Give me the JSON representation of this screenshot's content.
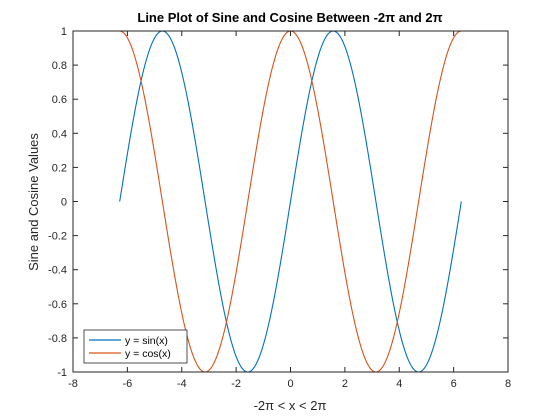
{
  "chart_data": {
    "type": "line",
    "title": "Line Plot of Sine and Cosine Between -2π and 2π",
    "xlabel": "-2π  < x < 2π",
    "ylabel": "Sine and Cosine Values",
    "xlim": [
      -8,
      8
    ],
    "ylim": [
      -1,
      1
    ],
    "xticks": [
      -8,
      -6,
      -4,
      -2,
      0,
      2,
      4,
      6,
      8
    ],
    "yticks": [
      -1,
      -0.8,
      -0.6,
      -0.4,
      -0.2,
      0,
      0.2,
      0.4,
      0.6,
      0.8,
      1
    ],
    "grid": false,
    "legend_position": "bottom-left",
    "series": [
      {
        "name": "y = sin(x)",
        "color": "#0072BD",
        "function": "sin",
        "x_range": [
          -6.2832,
          6.2832
        ],
        "x": [
          -6.2832,
          -5.4978,
          -4.7124,
          -3.927,
          -3.1416,
          -2.3562,
          -1.5708,
          -0.7854,
          0,
          0.7854,
          1.5708,
          2.3562,
          3.1416,
          3.927,
          4.7124,
          5.4978,
          6.2832
        ],
        "values": [
          0,
          0.7071,
          1,
          0.7071,
          0,
          -0.7071,
          -1,
          -0.7071,
          0,
          0.7071,
          1,
          0.7071,
          0,
          -0.7071,
          -1,
          -0.7071,
          0
        ]
      },
      {
        "name": "y = cos(x)",
        "color": "#D95319",
        "function": "cos",
        "x_range": [
          -6.2832,
          6.2832
        ],
        "x": [
          -6.2832,
          -5.4978,
          -4.7124,
          -3.927,
          -3.1416,
          -2.3562,
          -1.5708,
          -0.7854,
          0,
          0.7854,
          1.5708,
          2.3562,
          3.1416,
          3.927,
          4.7124,
          5.4978,
          6.2832
        ],
        "values": [
          1,
          0.7071,
          0,
          -0.7071,
          -1,
          -0.7071,
          0,
          0.7071,
          1,
          0.7071,
          0,
          -0.7071,
          -1,
          -0.7071,
          0,
          0.7071,
          1
        ]
      }
    ]
  }
}
